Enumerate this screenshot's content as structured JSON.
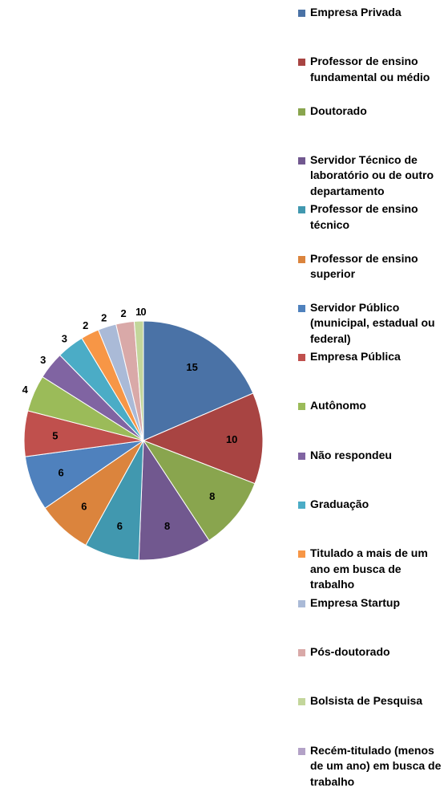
{
  "chart_data": {
    "type": "pie",
    "start": "top",
    "direction": "clockwise",
    "slices": [
      {
        "label": "Empresa Privada",
        "value": 15,
        "display": "15",
        "color": "#4a72a6"
      },
      {
        "label": "Professor de ensino fundamental ou médio",
        "value": 10,
        "display": "10",
        "color": "#a84442"
      },
      {
        "label": "Doutorado",
        "value": 8,
        "display": "8",
        "color": "#89a54e"
      },
      {
        "label": "Servidor Técnico de laboratório ou de outro departamento",
        "value": 8,
        "display": "8",
        "color": "#71588f"
      },
      {
        "label": "Professor de ensino técnico",
        "value": 6,
        "display": "6",
        "color": "#4198af"
      },
      {
        "label": "Professor de ensino superior",
        "value": 6,
        "display": "6",
        "color": "#db843d"
      },
      {
        "label": "Servidor Público (municipal, estadual ou federal)",
        "value": 6,
        "display": "6",
        "color": "#4f81bd"
      },
      {
        "label": "Empresa Pública",
        "value": 5,
        "display": "5",
        "color": "#c0504d"
      },
      {
        "label": "Autônomo",
        "value": 4,
        "display": "4",
        "color": "#9bbb59"
      },
      {
        "label": "Não respondeu",
        "value": 3,
        "display": "3",
        "color": "#8064a2"
      },
      {
        "label": "Graduação",
        "value": 3,
        "display": "3",
        "color": "#4bacc6"
      },
      {
        "label": "Titulado a mais de um ano em busca de trabalho",
        "value": 2,
        "display": "2",
        "color": "#f79646"
      },
      {
        "label": "Empresa Startup",
        "value": 2,
        "display": "2",
        "color": "#aabad7"
      },
      {
        "label": "Pós-doutorado",
        "value": 2,
        "display": "2",
        "color": "#d9a9a8"
      },
      {
        "label": "Bolsista de Pesquisa",
        "value": 1,
        "display": "1",
        "color": "#c3d69b"
      },
      {
        "label": "Recém-titulado (menos de um ano) em busca de trabalho",
        "value": 0,
        "display": "0",
        "color": "#b3a2c7"
      }
    ],
    "legend_position": "right"
  }
}
